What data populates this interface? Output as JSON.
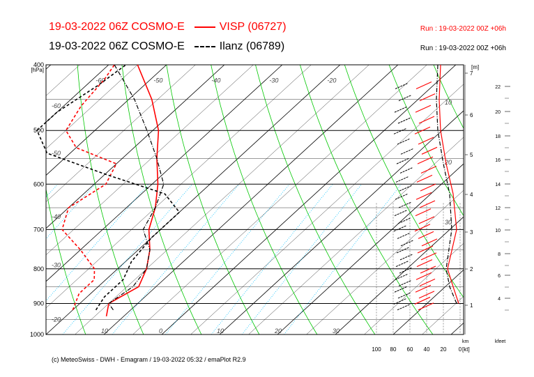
{
  "header": {
    "title_1": "19-03-2022 06Z COSMO-E",
    "station_1": "VISP (06727)",
    "run_1": "Run : 19-03-2022 00Z +06h",
    "title_2": "19-03-2022 06Z COSMO-E",
    "station_2": "Ilanz (06789)",
    "run_2": "Run : 19-03-2022 00Z +06h"
  },
  "footer": {
    "copyright": "(c) MeteoSwiss - DWH - Emagram / 19-03-2022  05:32 / emaPlot R2.9"
  },
  "colors": {
    "visp": "#ff0000",
    "ilanz": "#000000",
    "dry_adiabat": "#00c800",
    "mixing_ratio": "#00bfff",
    "isotherm": "#000000"
  },
  "chart_data": {
    "type": "line",
    "chart_kind": "emagram (skew-T log-p)",
    "y_axis": {
      "unit": "[hPa]",
      "scale": "log",
      "ticks": [
        400,
        500,
        600,
        700,
        800,
        900,
        1000
      ],
      "ylim": [
        1000,
        400
      ]
    },
    "x_axis": {
      "isotherm_labels": [
        -60,
        -50,
        -40,
        -30,
        -20,
        10,
        0,
        10,
        20,
        30
      ],
      "bottom_labels": [
        -20,
        10,
        0,
        10,
        20,
        30
      ],
      "ylim_label": "T"
    },
    "height_km_axis": {
      "label_top": "[m]",
      "label_bottom": "km",
      "ticks": [
        1,
        2,
        3,
        4,
        5,
        6,
        7
      ]
    },
    "height_kfeet_axis": {
      "label": "kfeet",
      "ticks": [
        4,
        6,
        8,
        10,
        12,
        14,
        16,
        18,
        20,
        22
      ]
    },
    "wind_axis": {
      "unit": "[kt]",
      "ticks": [
        100,
        80,
        60,
        40,
        20,
        0
      ],
      "inner_labels": [
        10,
        20,
        30
      ]
    },
    "series": [
      {
        "name": "VISP (06727)",
        "kind": "temperature",
        "points": [
          [
            940,
            -13
          ],
          [
            900,
            -15
          ],
          [
            850,
            -13
          ],
          [
            800,
            -15
          ],
          [
            750,
            -18
          ],
          [
            700,
            -22
          ],
          [
            650,
            -25
          ],
          [
            600,
            -29
          ],
          [
            550,
            -34
          ],
          [
            500,
            -39
          ],
          [
            450,
            -46
          ],
          [
            400,
            -55
          ]
        ]
      },
      {
        "name": "VISP (06727)",
        "kind": "dewpoint",
        "points": [
          [
            920,
            -20
          ],
          [
            870,
            -22
          ],
          [
            830,
            -22
          ],
          [
            800,
            -24
          ],
          [
            750,
            -30
          ],
          [
            700,
            -37
          ],
          [
            650,
            -40
          ],
          [
            600,
            -38
          ],
          [
            560,
            -40
          ],
          [
            530,
            -50
          ],
          [
            500,
            -55
          ],
          [
            460,
            -57
          ],
          [
            420,
            -58
          ],
          [
            400,
            -59
          ]
        ]
      },
      {
        "name": "Ilanz (06789)",
        "kind": "temperature",
        "points": [
          [
            920,
            -13
          ],
          [
            900,
            -15
          ],
          [
            850,
            -14
          ],
          [
            800,
            -15
          ],
          [
            750,
            -18
          ],
          [
            700,
            -23
          ],
          [
            650,
            -25
          ],
          [
            600,
            -28
          ],
          [
            550,
            -34
          ],
          [
            500,
            -41
          ],
          [
            450,
            -49
          ],
          [
            400,
            -59
          ]
        ]
      },
      {
        "name": "Ilanz (06789)",
        "kind": "dewpoint",
        "points": [
          [
            920,
            -16
          ],
          [
            880,
            -17
          ],
          [
            830,
            -17
          ],
          [
            780,
            -19
          ],
          [
            720,
            -20
          ],
          [
            660,
            -20
          ],
          [
            620,
            -26
          ],
          [
            580,
            -40
          ],
          [
            540,
            -54
          ],
          [
            500,
            -60
          ],
          [
            470,
            -60
          ],
          [
            430,
            -58
          ],
          [
            400,
            -57
          ]
        ]
      }
    ],
    "grid": true
  }
}
